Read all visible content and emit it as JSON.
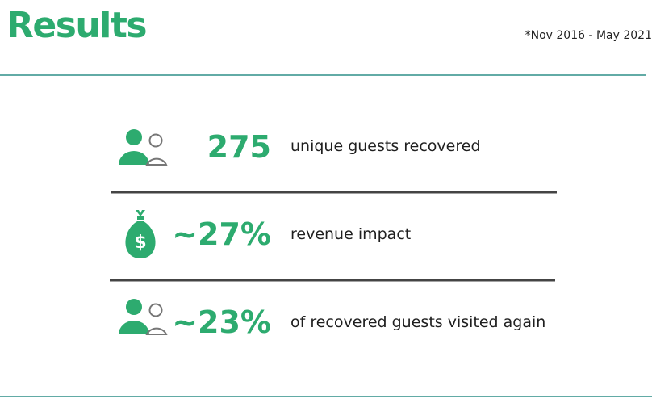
{
  "header": {
    "title": "Results",
    "note": "*Nov 2016 - May 2021"
  },
  "items": [
    {
      "value": "275",
      "label": "unique guests recovered"
    },
    {
      "value": "~27%",
      "label": "revenue impact"
    },
    {
      "value": "~23%",
      "label": "of recovered guests visited again"
    }
  ]
}
